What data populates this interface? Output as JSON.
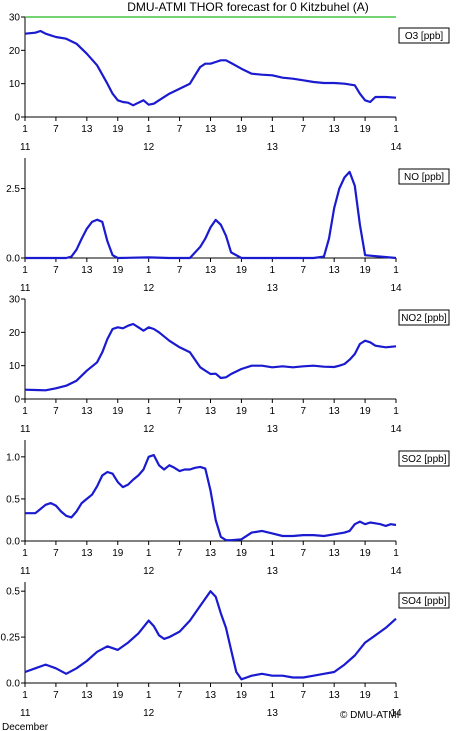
{
  "title": "DMU-ATMI THOR forecast for 0 Kitzbuhel (A)",
  "footer": {
    "month": "December",
    "copyright": "© DMU-ATMI"
  },
  "colors": {
    "line": "#1a1ad0",
    "threshold": "#22bb22",
    "axis": "#000000"
  },
  "x_axis": {
    "hour_ticks": [
      {
        "h": 0,
        "label": "1"
      },
      {
        "h": 6,
        "label": "7"
      },
      {
        "h": 12,
        "label": "13"
      },
      {
        "h": 18,
        "label": "19"
      },
      {
        "h": 24,
        "label": "1"
      },
      {
        "h": 30,
        "label": "7"
      },
      {
        "h": 36,
        "label": "13"
      },
      {
        "h": 42,
        "label": "19"
      },
      {
        "h": 48,
        "label": "1"
      },
      {
        "h": 54,
        "label": "7"
      },
      {
        "h": 60,
        "label": "13"
      },
      {
        "h": 66,
        "label": "19"
      },
      {
        "h": 72,
        "label": "1"
      }
    ],
    "day_ticks": [
      {
        "h": 0,
        "label": "11"
      },
      {
        "h": 24,
        "label": "12"
      },
      {
        "h": 48,
        "label": "13"
      },
      {
        "h": 72,
        "label": "14"
      }
    ]
  },
  "chart_data": [
    {
      "type": "line",
      "name": "O3 [ppb]",
      "ylim": [
        0,
        30
      ],
      "yticks": [
        {
          "v": 0,
          "label": "0"
        },
        {
          "v": 10,
          "label": "10"
        },
        {
          "v": 20,
          "label": "20"
        },
        {
          "v": 30,
          "label": "30"
        }
      ],
      "threshold": 30,
      "x": [
        0,
        2,
        3,
        4,
        6,
        8,
        10,
        12,
        14,
        16,
        17,
        18,
        19,
        20,
        21,
        22,
        23,
        24,
        25,
        26,
        28,
        30,
        32,
        33,
        34,
        35,
        36,
        37,
        38,
        39,
        40,
        42,
        44,
        46,
        48,
        50,
        52,
        54,
        56,
        58,
        60,
        62,
        64,
        65,
        66,
        67,
        68,
        70,
        72
      ],
      "y": [
        25,
        25.3,
        25.8,
        25,
        24,
        23.5,
        22,
        19,
        15.5,
        10,
        7,
        5,
        4.5,
        4.3,
        3.5,
        4.3,
        5,
        3.7,
        4,
        5,
        7,
        8.5,
        10,
        12.5,
        15,
        16,
        16,
        16.5,
        17,
        17,
        16.2,
        14.5,
        13,
        12.7,
        12.5,
        11.8,
        11.5,
        11,
        10.5,
        10.2,
        10.2,
        10,
        9.5,
        7,
        5,
        4.5,
        6,
        6,
        5.8
      ]
    },
    {
      "type": "line",
      "name": "NO [ppb]",
      "ylim": [
        0,
        3.6
      ],
      "yticks": [
        {
          "v": 0,
          "label": "0.0"
        },
        {
          "v": 2.5,
          "label": "2.5"
        }
      ],
      "x": [
        0,
        8,
        9,
        10,
        11,
        12,
        13,
        14,
        15,
        16,
        17,
        18,
        24,
        28,
        30,
        32,
        34,
        35,
        36,
        37,
        38,
        39,
        40,
        42,
        50,
        56,
        58,
        59,
        60,
        61,
        62,
        63,
        64,
        65,
        66,
        72
      ],
      "y": [
        0,
        0,
        0.05,
        0.3,
        0.7,
        1.05,
        1.3,
        1.38,
        1.3,
        0.6,
        0.1,
        0,
        0.02,
        0,
        0,
        0,
        0.4,
        0.7,
        1.1,
        1.37,
        1.2,
        0.8,
        0.2,
        0,
        0,
        0,
        0.05,
        0.7,
        1.8,
        2.5,
        2.9,
        3.1,
        2.6,
        1.2,
        0.1,
        0
      ]
    },
    {
      "type": "line",
      "name": "NO2 [ppb]",
      "ylim": [
        0,
        30
      ],
      "yticks": [
        {
          "v": 0,
          "label": "0"
        },
        {
          "v": 10,
          "label": "10"
        },
        {
          "v": 20,
          "label": "20"
        },
        {
          "v": 30,
          "label": "30"
        }
      ],
      "x": [
        0,
        2,
        4,
        6,
        8,
        10,
        12,
        14,
        15,
        16,
        17,
        18,
        19,
        20,
        21,
        22,
        23,
        24,
        25,
        26,
        28,
        30,
        32,
        34,
        36,
        37,
        38,
        39,
        40,
        42,
        44,
        46,
        48,
        50,
        52,
        54,
        56,
        58,
        60,
        61,
        62,
        63,
        64,
        65,
        66,
        67,
        68,
        70,
        72
      ],
      "y": [
        2.8,
        2.7,
        2.6,
        3.2,
        4,
        5.5,
        8.5,
        11,
        14,
        18,
        21,
        21.5,
        21.2,
        22,
        22.5,
        21.5,
        20.5,
        21.5,
        21,
        20,
        17.5,
        15.5,
        14,
        9.5,
        7.5,
        7.6,
        6.3,
        6.5,
        7.5,
        9,
        10,
        10,
        9.5,
        9.8,
        9.5,
        9.8,
        10,
        9.7,
        9.6,
        10,
        10.5,
        11.8,
        13.5,
        16.5,
        17.5,
        17,
        16,
        15.5,
        15.8
      ]
    },
    {
      "type": "line",
      "name": "SO2 [ppb]",
      "ylim": [
        0,
        1.2
      ],
      "yticks": [
        {
          "v": 0,
          "label": "0.0"
        },
        {
          "v": 0.5,
          "label": "0.5"
        },
        {
          "v": 1.0,
          "label": "1.0"
        }
      ],
      "x": [
        0,
        2,
        3,
        4,
        5,
        6,
        7,
        8,
        9,
        10,
        11,
        12,
        13,
        14,
        15,
        16,
        17,
        18,
        19,
        20,
        21,
        22,
        23,
        24,
        25,
        26,
        27,
        28,
        29,
        30,
        31,
        32,
        33,
        34,
        35,
        36,
        37,
        38,
        39,
        40,
        42,
        44,
        46,
        48,
        50,
        52,
        54,
        56,
        58,
        60,
        62,
        63,
        64,
        65,
        66,
        67,
        68,
        69,
        70,
        71,
        72
      ],
      "y": [
        0.33,
        0.33,
        0.38,
        0.43,
        0.45,
        0.42,
        0.35,
        0.3,
        0.28,
        0.35,
        0.45,
        0.5,
        0.55,
        0.65,
        0.78,
        0.82,
        0.8,
        0.7,
        0.64,
        0.67,
        0.73,
        0.78,
        0.85,
        1.0,
        1.02,
        0.9,
        0.85,
        0.9,
        0.87,
        0.83,
        0.85,
        0.85,
        0.87,
        0.88,
        0.86,
        0.6,
        0.25,
        0.05,
        0.01,
        0.01,
        0.02,
        0.1,
        0.12,
        0.09,
        0.06,
        0.06,
        0.07,
        0.07,
        0.06,
        0.08,
        0.1,
        0.12,
        0.2,
        0.23,
        0.2,
        0.22,
        0.21,
        0.2,
        0.18,
        0.2,
        0.19
      ]
    },
    {
      "type": "line",
      "name": "SO4 [ppb]",
      "ylim": [
        0,
        0.55
      ],
      "yticks": [
        {
          "v": 0,
          "label": "0.0"
        },
        {
          "v": 0.25,
          "label": "0.25"
        },
        {
          "v": 0.5,
          "label": "0.5"
        }
      ],
      "x": [
        0,
        2,
        4,
        6,
        8,
        10,
        12,
        14,
        16,
        18,
        20,
        22,
        24,
        25,
        26,
        27,
        28,
        30,
        32,
        34,
        36,
        37,
        38,
        39,
        40,
        41,
        42,
        43,
        44,
        46,
        48,
        50,
        52,
        54,
        56,
        58,
        60,
        62,
        64,
        66,
        68,
        70,
        72
      ],
      "y": [
        0.06,
        0.08,
        0.1,
        0.08,
        0.05,
        0.08,
        0.12,
        0.17,
        0.2,
        0.18,
        0.22,
        0.27,
        0.34,
        0.31,
        0.26,
        0.24,
        0.25,
        0.28,
        0.34,
        0.42,
        0.5,
        0.47,
        0.38,
        0.3,
        0.18,
        0.06,
        0.02,
        0.03,
        0.04,
        0.05,
        0.04,
        0.04,
        0.03,
        0.03,
        0.04,
        0.05,
        0.06,
        0.1,
        0.15,
        0.22,
        0.26,
        0.3,
        0.35
      ]
    }
  ]
}
